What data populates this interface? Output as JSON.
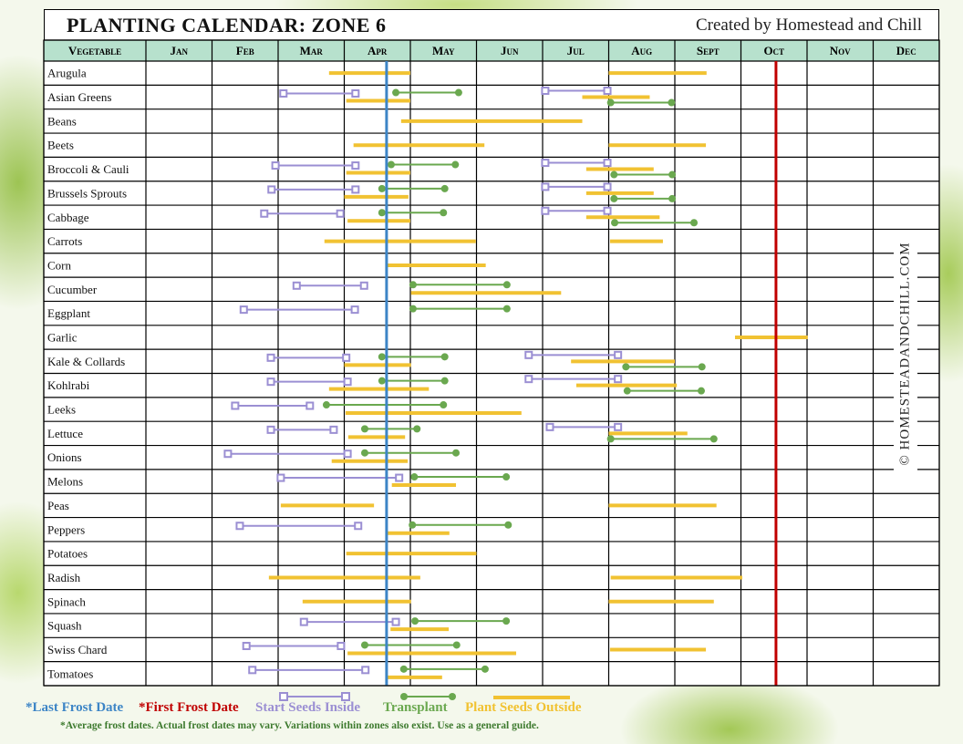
{
  "header": {
    "title": "PLANTING CALENDAR: ZONE 6",
    "credit": "Created by Homestead and Chill"
  },
  "watermark": "© HOMESTEADANDCHILL.COM",
  "colors": {
    "header_bg": "#b7e1cd",
    "start_inside": "#9b8fd3",
    "transplant": "#6aa84f",
    "plant_outside": "#f1c232",
    "last_frost": "#3d85c6",
    "first_frost": "#c00000"
  },
  "legend": {
    "last_frost": "*Last Frost Date",
    "first_frost": "*First Frost Date",
    "start_inside": "Start Seeds Inside",
    "transplant": "Transplant",
    "plant_outside": "Plant Seeds Outside",
    "note": "*Average frost dates. Actual frost dates may vary. Variations within zones also exist. Use as a general guide."
  },
  "chart_data": {
    "type": "gantt",
    "title": "PLANTING CALENDAR: ZONE 6",
    "first_column_header": "Vegetable",
    "categories": [
      "Jan",
      "Feb",
      "Mar",
      "Apr",
      "May",
      "Jun",
      "Jul",
      "Aug",
      "Sept",
      "Oct",
      "Nov",
      "Dec"
    ],
    "x_unit": "month (1.0 = start of Jan, 13.0 = end of Dec)",
    "xlim": [
      1,
      13
    ],
    "grid": true,
    "last_frost": 4.64,
    "first_frost": 10.53,
    "rows": [
      {
        "name": "Arugula",
        "segments": [
          {
            "type": "outside",
            "start": 3.77,
            "end": 5.0
          },
          {
            "type": "outside",
            "start": 8.0,
            "end": 9.48
          }
        ]
      },
      {
        "name": "Asian Greens",
        "segments": [
          {
            "type": "inside",
            "start": 3.08,
            "end": 4.17
          },
          {
            "type": "outside",
            "start": 4.03,
            "end": 5.0
          },
          {
            "type": "transplant",
            "start": 4.78,
            "end": 5.73
          },
          {
            "type": "inside",
            "start": 7.04,
            "end": 7.98
          },
          {
            "type": "outside",
            "start": 7.6,
            "end": 8.62
          },
          {
            "type": "transplant",
            "start": 8.03,
            "end": 8.95
          }
        ]
      },
      {
        "name": "Beans",
        "segments": [
          {
            "type": "outside",
            "start": 4.86,
            "end": 7.6
          }
        ]
      },
      {
        "name": "Beets",
        "segments": [
          {
            "type": "outside",
            "start": 4.14,
            "end": 6.12
          },
          {
            "type": "outside",
            "start": 8.0,
            "end": 9.47
          }
        ]
      },
      {
        "name": "Broccoli & Cauli",
        "segments": [
          {
            "type": "inside",
            "start": 2.96,
            "end": 4.17
          },
          {
            "type": "outside",
            "start": 4.03,
            "end": 5.0
          },
          {
            "type": "transplant",
            "start": 4.71,
            "end": 5.68
          },
          {
            "type": "inside",
            "start": 7.04,
            "end": 7.98
          },
          {
            "type": "outside",
            "start": 7.66,
            "end": 8.68
          },
          {
            "type": "transplant",
            "start": 8.08,
            "end": 8.96
          }
        ]
      },
      {
        "name": "Brussels Sprouts",
        "segments": [
          {
            "type": "inside",
            "start": 2.9,
            "end": 4.17
          },
          {
            "type": "outside",
            "start": 4.0,
            "end": 4.97
          },
          {
            "type": "transplant",
            "start": 4.57,
            "end": 5.52
          },
          {
            "type": "inside",
            "start": 7.04,
            "end": 7.98
          },
          {
            "type": "outside",
            "start": 7.66,
            "end": 8.68
          },
          {
            "type": "transplant",
            "start": 8.08,
            "end": 8.96
          }
        ]
      },
      {
        "name": "Cabbage",
        "segments": [
          {
            "type": "inside",
            "start": 2.79,
            "end": 3.94
          },
          {
            "type": "outside",
            "start": 4.05,
            "end": 5.0
          },
          {
            "type": "transplant",
            "start": 4.57,
            "end": 5.5
          },
          {
            "type": "inside",
            "start": 7.04,
            "end": 7.98
          },
          {
            "type": "outside",
            "start": 7.66,
            "end": 8.77
          },
          {
            "type": "transplant",
            "start": 8.09,
            "end": 9.29
          }
        ]
      },
      {
        "name": "Carrots",
        "segments": [
          {
            "type": "outside",
            "start": 3.7,
            "end": 5.99
          },
          {
            "type": "outside",
            "start": 8.02,
            "end": 8.82
          }
        ]
      },
      {
        "name": "Corn",
        "segments": [
          {
            "type": "outside",
            "start": 4.64,
            "end": 6.14
          }
        ]
      },
      {
        "name": "Cucumber",
        "segments": [
          {
            "type": "inside",
            "start": 3.28,
            "end": 4.3
          },
          {
            "type": "transplant",
            "start": 5.04,
            "end": 6.46
          },
          {
            "type": "outside",
            "start": 5.01,
            "end": 7.28
          }
        ]
      },
      {
        "name": "Eggplant",
        "segments": [
          {
            "type": "inside",
            "start": 2.48,
            "end": 4.16
          },
          {
            "type": "transplant",
            "start": 5.04,
            "end": 6.46
          }
        ]
      },
      {
        "name": "Garlic",
        "segments": [
          {
            "type": "outside",
            "start": 9.91,
            "end": 11.01
          }
        ]
      },
      {
        "name": "Kale & Collards",
        "segments": [
          {
            "type": "inside",
            "start": 2.89,
            "end": 4.03
          },
          {
            "type": "transplant",
            "start": 4.57,
            "end": 5.52
          },
          {
            "type": "outside",
            "start": 4.0,
            "end": 5.01
          },
          {
            "type": "inside",
            "start": 6.79,
            "end": 8.14
          },
          {
            "type": "transplant",
            "start": 8.26,
            "end": 9.41
          },
          {
            "type": "outside",
            "start": 7.43,
            "end": 9.0
          }
        ]
      },
      {
        "name": "Kohlrabi",
        "segments": [
          {
            "type": "inside",
            "start": 2.89,
            "end": 4.05
          },
          {
            "type": "transplant",
            "start": 4.57,
            "end": 5.52
          },
          {
            "type": "outside",
            "start": 3.77,
            "end": 5.28
          },
          {
            "type": "inside",
            "start": 6.79,
            "end": 8.14
          },
          {
            "type": "transplant",
            "start": 8.28,
            "end": 9.4
          },
          {
            "type": "outside",
            "start": 7.51,
            "end": 9.03
          }
        ]
      },
      {
        "name": "Leeks",
        "segments": [
          {
            "type": "inside",
            "start": 2.35,
            "end": 3.48
          },
          {
            "type": "transplant",
            "start": 3.73,
            "end": 5.5
          },
          {
            "type": "outside",
            "start": 4.02,
            "end": 6.68
          }
        ]
      },
      {
        "name": "Lettuce",
        "segments": [
          {
            "type": "inside",
            "start": 2.89,
            "end": 3.84
          },
          {
            "type": "transplant",
            "start": 4.31,
            "end": 5.1
          },
          {
            "type": "outside",
            "start": 4.06,
            "end": 4.92
          },
          {
            "type": "inside",
            "start": 7.11,
            "end": 8.14
          },
          {
            "type": "outside",
            "start": 8.0,
            "end": 9.19
          },
          {
            "type": "transplant",
            "start": 8.03,
            "end": 9.59
          }
        ]
      },
      {
        "name": "Onions",
        "segments": [
          {
            "type": "inside",
            "start": 2.24,
            "end": 4.05
          },
          {
            "type": "transplant",
            "start": 4.31,
            "end": 5.69
          },
          {
            "type": "outside",
            "start": 3.81,
            "end": 4.96
          }
        ]
      },
      {
        "name": "Melons",
        "segments": [
          {
            "type": "inside",
            "start": 3.04,
            "end": 4.83
          },
          {
            "type": "transplant",
            "start": 5.06,
            "end": 6.45
          },
          {
            "type": "outside",
            "start": 4.72,
            "end": 5.69
          }
        ]
      },
      {
        "name": "Peas",
        "segments": [
          {
            "type": "outside",
            "start": 3.04,
            "end": 4.45
          },
          {
            "type": "outside",
            "start": 8.0,
            "end": 9.63
          }
        ]
      },
      {
        "name": "Peppers",
        "segments": [
          {
            "type": "inside",
            "start": 2.42,
            "end": 4.21
          },
          {
            "type": "transplant",
            "start": 5.03,
            "end": 6.48
          },
          {
            "type": "outside",
            "start": 4.64,
            "end": 5.59
          }
        ]
      },
      {
        "name": "Potatoes",
        "segments": [
          {
            "type": "outside",
            "start": 4.03,
            "end": 6.0
          }
        ]
      },
      {
        "name": "Radish",
        "segments": [
          {
            "type": "outside",
            "start": 2.86,
            "end": 5.15
          },
          {
            "type": "outside",
            "start": 8.03,
            "end": 10.02
          }
        ]
      },
      {
        "name": "Spinach",
        "segments": [
          {
            "type": "outside",
            "start": 3.37,
            "end": 5.01
          },
          {
            "type": "outside",
            "start": 8.0,
            "end": 9.59
          }
        ]
      },
      {
        "name": "Squash",
        "segments": [
          {
            "type": "inside",
            "start": 3.39,
            "end": 4.78
          },
          {
            "type": "transplant",
            "start": 5.07,
            "end": 6.45
          },
          {
            "type": "outside",
            "start": 4.7,
            "end": 5.58
          }
        ]
      },
      {
        "name": "Swiss Chard",
        "segments": [
          {
            "type": "inside",
            "start": 2.52,
            "end": 3.95
          },
          {
            "type": "transplant",
            "start": 4.31,
            "end": 5.7
          },
          {
            "type": "outside",
            "start": 4.05,
            "end": 6.6
          },
          {
            "type": "outside",
            "start": 8.02,
            "end": 9.47
          }
        ]
      },
      {
        "name": "Tomatoes",
        "segments": [
          {
            "type": "inside",
            "start": 2.61,
            "end": 4.32
          },
          {
            "type": "transplant",
            "start": 4.9,
            "end": 6.13
          },
          {
            "type": "outside",
            "start": 4.64,
            "end": 5.48
          }
        ]
      }
    ]
  }
}
